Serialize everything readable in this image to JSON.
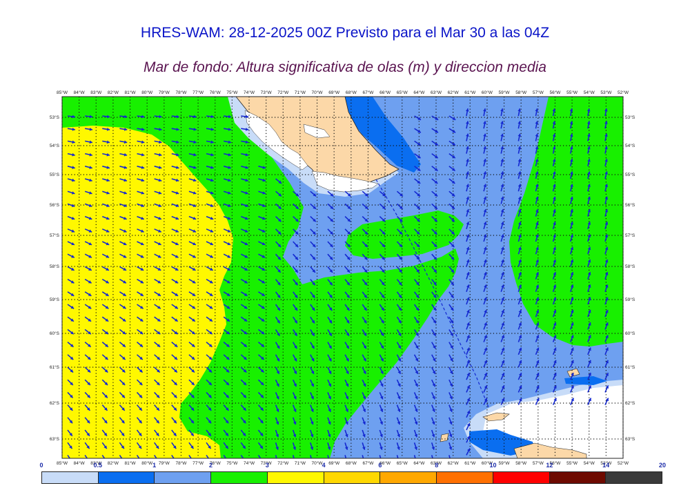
{
  "title": "HRES-WAM: 28-12-2025 00Z Previsto para el Mar 30 a las 04Z",
  "subtitle": "Mar de fondo: Altura significativa de olas (m) y direccion media",
  "lon_labels": [
    "85°W",
    "84°W",
    "83°W",
    "82°W",
    "81°W",
    "80°W",
    "79°W",
    "78°W",
    "77°W",
    "76°W",
    "75°W",
    "74°W",
    "73°W",
    "72°W",
    "71°W",
    "70°W",
    "69°W",
    "68°W",
    "67°W",
    "66°W",
    "65°W",
    "64°W",
    "63°W",
    "62°W",
    "61°W",
    "60°W",
    "59°W",
    "58°W",
    "57°W",
    "56°W",
    "55°W",
    "54°W",
    "53°W",
    "52°W"
  ],
  "lat_labels": [
    "53°S",
    "54°S",
    "55°S",
    "56°S",
    "57°S",
    "58°S",
    "59°S",
    "60°S",
    "61°S",
    "62°S",
    "63°S"
  ],
  "colorbar": {
    "ticks": [
      "0",
      "0.5",
      "1",
      "2",
      "3",
      "4",
      "6",
      "8",
      "10",
      "12",
      "14",
      "20"
    ],
    "colors": [
      "#c8dcf8",
      "#0a6ef0",
      "#6ea0f0",
      "#18f000",
      "#fff800",
      "#ffd800",
      "#ffa800",
      "#ff7000",
      "#ff0000",
      "#6e0a00",
      "#3a3a3a"
    ]
  },
  "palette": {
    "land": "#fcd8a8",
    "ice": "#ffffff",
    "arrow": "#1428d0"
  }
}
